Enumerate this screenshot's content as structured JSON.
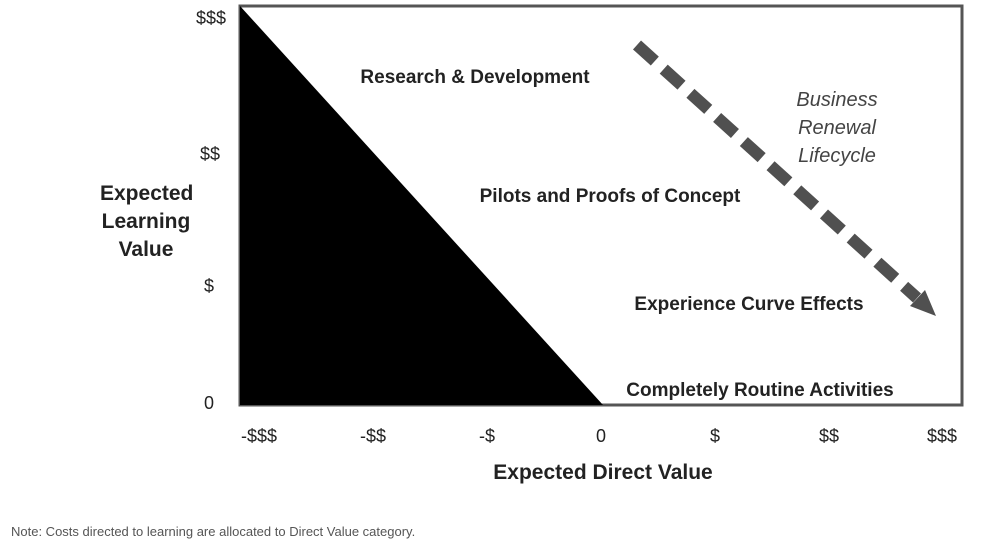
{
  "y_axis": {
    "title_lines": [
      "Expected",
      "Learning",
      "Value"
    ],
    "ticks": [
      "$$$",
      "$$",
      "$",
      "0"
    ]
  },
  "x_axis": {
    "title": "Expected Direct Value",
    "ticks": [
      "-$$$",
      "-$$",
      "-$",
      "0",
      "$",
      "$$",
      "$$$"
    ]
  },
  "regions": [
    "Research & Development",
    "Pilots and Proofs of Concept",
    "Experience Curve Effects",
    "Completely Routine Activities"
  ],
  "arrow_label_lines": [
    "Business",
    "Renewal",
    "Lifecycle"
  ],
  "note": "Note: Costs directed to learning are allocated to Direct Value category.",
  "colors": {
    "frame": "#555555",
    "triangle": "#000000",
    "arrow": "#505050",
    "text": "#222222",
    "arrow_text": "#444444",
    "note_text": "#555555"
  }
}
